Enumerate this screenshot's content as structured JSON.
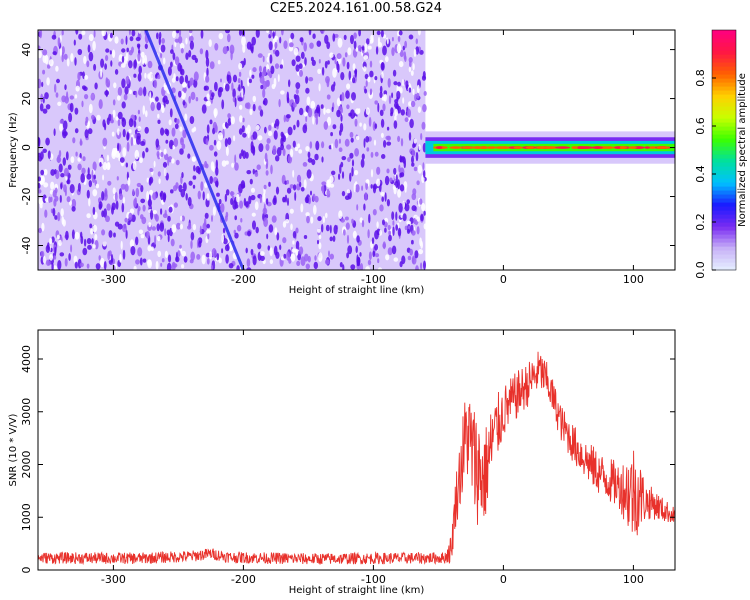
{
  "title": "C2E5.2024.161.00.58.G24",
  "colors": {
    "snr_line": "#e8312b",
    "spectrogram_noise_dark": "#5a0fe8",
    "spectrogram_noise_light": "#d9c8fb",
    "colormap": [
      "#e6f0ff",
      "#c8b2f7",
      "#7a2cf2",
      "#1a1aff",
      "#00c0ff",
      "#00e0a0",
      "#3cff00",
      "#c8ff00",
      "#ffd000",
      "#ff6000",
      "#ff1744",
      "#ff0080"
    ]
  },
  "chart_data": [
    {
      "type": "heatmap",
      "name": "spectrogram",
      "xlabel": "Height of straight line (km)",
      "ylabel": "Frequency (Hz)",
      "xlim": [
        -358,
        132
      ],
      "ylim": [
        -50,
        48
      ],
      "xticks": [
        -300,
        -200,
        -100,
        0,
        100
      ],
      "yticks": [
        -40,
        -20,
        0,
        20,
        40
      ],
      "noise_region_x": [
        -358,
        -60
      ],
      "signal_band": {
        "x": [
          -60,
          132
        ],
        "frequency_center": 0,
        "frequency_halfwidth": 3
      },
      "drift_track": {
        "x": [
          -275,
          -200
        ],
        "frequency": [
          48,
          -50
        ]
      },
      "colorbar": {
        "label": "Normalized spectral amplitude",
        "range": [
          0,
          1
        ],
        "ticks": [
          0.0,
          0.2,
          0.4,
          0.6,
          0.8
        ]
      }
    },
    {
      "type": "line",
      "name": "snr",
      "xlabel": "Height of straight line (km)",
      "ylabel": "SNR (10 * V/V)",
      "xlim": [
        -358,
        132
      ],
      "ylim": [
        0,
        4550
      ],
      "xticks": [
        -300,
        -200,
        -100,
        0,
        100
      ],
      "yticks": [
        0,
        1000,
        2000,
        3000,
        4000
      ],
      "envelope": {
        "x": [
          -358,
          -280,
          -240,
          -225,
          -210,
          -150,
          -100,
          -45,
          -40,
          -37,
          -33,
          -28,
          -22,
          -15,
          -8,
          0,
          10,
          20,
          28,
          35,
          45,
          55,
          65,
          75,
          85,
          95,
          103,
          110,
          116,
          122,
          132
        ],
        "y": [
          230,
          220,
          260,
          310,
          240,
          210,
          220,
          230,
          400,
          1250,
          1900,
          2650,
          2050,
          1700,
          2500,
          3000,
          3300,
          3550,
          3800,
          3500,
          2750,
          2350,
          2050,
          1800,
          1650,
          1500,
          1450,
          1300,
          1250,
          1150,
          1030
        ]
      },
      "noise_amplitude": {
        "x": [
          -358,
          -45,
          -40,
          -30,
          -20,
          0,
          40,
          90,
          100,
          110,
          132
        ],
        "y": [
          110,
          110,
          300,
          900,
          1100,
          500,
          350,
          450,
          1000,
          350,
          150
        ]
      }
    }
  ]
}
